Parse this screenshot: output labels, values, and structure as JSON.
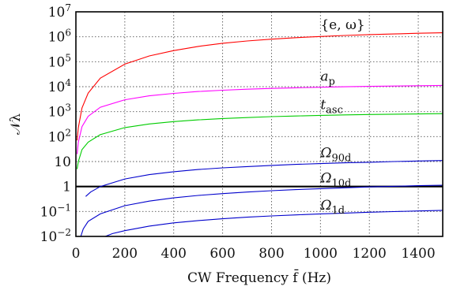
{
  "chart_data": {
    "type": "line",
    "xlabel": "CW Frequency f̄ (Hz)",
    "ylabel": "𝒩λ",
    "xlim": [
      0,
      1500
    ],
    "ylim": [
      0.01,
      10000000
    ],
    "yscale": "log",
    "grid": true,
    "xticks": [
      0,
      200,
      400,
      600,
      800,
      1000,
      1200,
      1400
    ],
    "yticks": [
      {
        "value": 0.01,
        "base": "10",
        "exp": "−2"
      },
      {
        "value": 0.1,
        "base": "10",
        "exp": "−1"
      },
      {
        "value": 1,
        "base": "1",
        "exp": ""
      },
      {
        "value": 10,
        "base": "10",
        "exp": ""
      },
      {
        "value": 100,
        "base": "10",
        "exp": "2"
      },
      {
        "value": 1000,
        "base": "10",
        "exp": "3"
      },
      {
        "value": 10000,
        "base": "10",
        "exp": "4"
      },
      {
        "value": 100000,
        "base": "10",
        "exp": "5"
      },
      {
        "value": 1000000,
        "base": "10",
        "exp": "6"
      },
      {
        "value": 10000000,
        "base": "10",
        "exp": "7"
      }
    ],
    "reference_line": {
      "y": 1,
      "color": "#000000"
    },
    "series": [
      {
        "key": "ew",
        "color": "#ff0000",
        "x": [
          5,
          10,
          25,
          50,
          100,
          200,
          300,
          400,
          500,
          600,
          700,
          800,
          900,
          1000,
          1100,
          1200,
          1300,
          1400,
          1500
        ],
        "values": [
          70,
          230,
          1400,
          5500,
          22000,
          80000,
          170000,
          280000,
          410000,
          550000,
          680000,
          800000,
          920000,
          1030000,
          1130000,
          1220000,
          1300000,
          1380000,
          1450000
        ]
      },
      {
        "key": "ap",
        "color": "#ff00ff",
        "x": [
          5,
          10,
          25,
          50,
          100,
          200,
          300,
          400,
          500,
          600,
          700,
          800,
          900,
          1000,
          1100,
          1200,
          1300,
          1400,
          1500
        ],
        "values": [
          20,
          60,
          250,
          650,
          1500,
          3000,
          4300,
          5400,
          6400,
          7200,
          7900,
          8500,
          9000,
          9500,
          9900,
          10300,
          10600,
          10900,
          11200
        ]
      },
      {
        "key": "tasc",
        "color": "#00cc00",
        "x": [
          5,
          10,
          25,
          50,
          100,
          200,
          300,
          400,
          500,
          600,
          700,
          800,
          900,
          1000,
          1100,
          1200,
          1300,
          1400,
          1500
        ],
        "values": [
          5,
          10,
          30,
          60,
          120,
          230,
          320,
          400,
          470,
          530,
          580,
          630,
          670,
          710,
          740,
          770,
          790,
          810,
          830
        ]
      },
      {
        "key": "o90",
        "color": "#0000cc",
        "x": [
          40,
          60,
          100,
          200,
          300,
          400,
          500,
          600,
          700,
          800,
          900,
          1000,
          1100,
          1200,
          1300,
          1400,
          1500
        ],
        "values": [
          0.4,
          0.6,
          1.0,
          2.0,
          3.0,
          3.9,
          4.8,
          5.6,
          6.3,
          7.0,
          7.7,
          8.3,
          8.9,
          9.4,
          10.0,
          10.5,
          11.0
        ]
      },
      {
        "key": "o10",
        "color": "#0000cc",
        "x": [
          20,
          30,
          50,
          100,
          200,
          300,
          400,
          500,
          600,
          700,
          800,
          900,
          1000,
          1100,
          1200,
          1300,
          1400,
          1500
        ],
        "values": [
          0.01,
          0.02,
          0.04,
          0.08,
          0.17,
          0.26,
          0.35,
          0.44,
          0.52,
          0.6,
          0.68,
          0.75,
          0.82,
          0.89,
          0.96,
          1.02,
          1.08,
          1.13
        ]
      },
      {
        "key": "o1",
        "color": "#0000cc",
        "x": [
          120,
          150,
          200,
          300,
          400,
          500,
          600,
          700,
          800,
          900,
          1000,
          1100,
          1200,
          1300,
          1400,
          1500
        ],
        "values": [
          0.01,
          0.013,
          0.017,
          0.026,
          0.035,
          0.043,
          0.051,
          0.059,
          0.066,
          0.073,
          0.08,
          0.086,
          0.093,
          0.099,
          0.105,
          0.111
        ]
      }
    ],
    "annotations": [
      {
        "key": "ew",
        "text": "{e, ω}",
        "at_x": 1000,
        "at_y": 1500000
      },
      {
        "key": "ap",
        "base": "a",
        "sub": "p",
        "at_x": 1000,
        "at_y": 13000
      },
      {
        "key": "tasc",
        "base": "t",
        "sub": "asc",
        "at_x": 1000,
        "at_y": 950
      },
      {
        "key": "o90",
        "base": "Ω",
        "sub": "90d",
        "at_x": 1000,
        "at_y": 11
      },
      {
        "key": "o10",
        "base": "Ω",
        "sub": "10d",
        "at_x": 1000,
        "at_y": 1.1
      },
      {
        "key": "o1",
        "base": "Ω",
        "sub": "1d",
        "at_x": 1000,
        "at_y": 0.09
      }
    ]
  }
}
